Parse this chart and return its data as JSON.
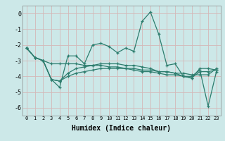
{
  "xlabel": "Humidex (Indice chaleur)",
  "ylabel": "",
  "background_color": "#cce8e8",
  "grid_color": "#b8d4d4",
  "line_color": "#2d7d6e",
  "xlim": [
    -0.5,
    23.5
  ],
  "ylim": [
    -6.5,
    0.5
  ],
  "yticks": [
    0,
    -1,
    -2,
    -3,
    -4,
    -5,
    -6
  ],
  "xticks": [
    0,
    1,
    2,
    3,
    4,
    5,
    6,
    7,
    8,
    9,
    10,
    11,
    12,
    13,
    14,
    15,
    16,
    17,
    18,
    19,
    20,
    21,
    22,
    23
  ],
  "x": [
    0,
    1,
    2,
    3,
    4,
    5,
    6,
    7,
    8,
    9,
    10,
    11,
    12,
    13,
    14,
    15,
    16,
    17,
    18,
    19,
    20,
    21,
    22,
    23
  ],
  "series": [
    [
      -2.2,
      -2.8,
      -3.0,
      -4.2,
      -4.7,
      -2.7,
      -2.7,
      -3.2,
      -2.0,
      -1.9,
      -2.1,
      -2.5,
      -2.2,
      -2.4,
      -0.5,
      0.1,
      -1.3,
      -3.3,
      -3.2,
      -4.0,
      -4.1,
      -3.5,
      -3.5,
      -3.6
    ],
    [
      -2.2,
      -2.8,
      -3.0,
      -3.2,
      -3.2,
      -3.2,
      -3.2,
      -3.3,
      -3.3,
      -3.3,
      -3.4,
      -3.4,
      -3.5,
      -3.5,
      -3.6,
      -3.6,
      -3.7,
      -3.7,
      -3.8,
      -3.8,
      -3.9,
      -3.9,
      -3.9,
      -3.5
    ],
    [
      -2.2,
      -2.8,
      -3.0,
      -4.2,
      -4.3,
      -3.8,
      -3.5,
      -3.4,
      -3.3,
      -3.2,
      -3.2,
      -3.2,
      -3.3,
      -3.3,
      -3.4,
      -3.5,
      -3.7,
      -3.7,
      -3.8,
      -4.0,
      -4.0,
      -3.6,
      -5.9,
      -3.7
    ],
    [
      -2.2,
      -2.8,
      -3.0,
      -4.2,
      -4.3,
      -4.0,
      -3.8,
      -3.7,
      -3.6,
      -3.5,
      -3.5,
      -3.5,
      -3.5,
      -3.6,
      -3.7,
      -3.7,
      -3.8,
      -3.9,
      -3.9,
      -4.0,
      -4.1,
      -3.7,
      -3.7,
      -3.6
    ]
  ]
}
